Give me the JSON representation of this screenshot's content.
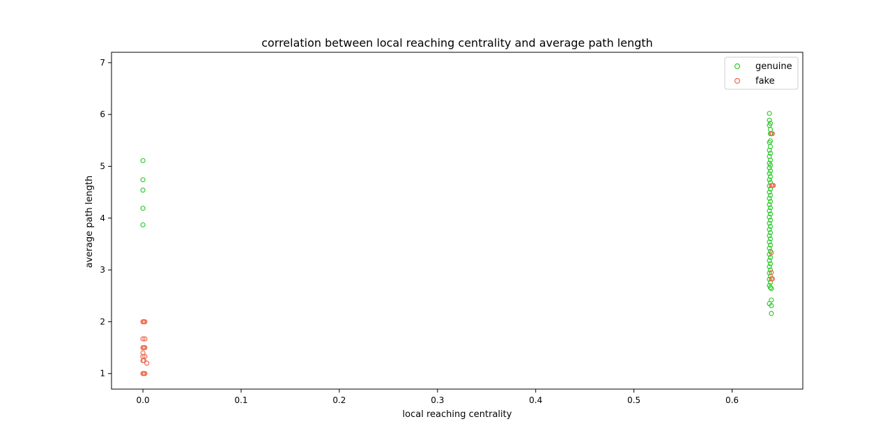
{
  "chart_data": {
    "type": "scatter",
    "title": "correlation between local reaching centrality and average path length",
    "xlabel": "local reaching centrality",
    "ylabel": "average path length",
    "xlim": [
      -0.032,
      0.672
    ],
    "ylim": [
      0.7,
      7.2
    ],
    "xticks": [
      0.0,
      0.1,
      0.2,
      0.3,
      0.4,
      0.5,
      0.6
    ],
    "xtick_labels": [
      "0.0",
      "0.1",
      "0.2",
      "0.3",
      "0.4",
      "0.5",
      "0.6"
    ],
    "yticks": [
      1,
      2,
      3,
      4,
      5,
      6,
      7
    ],
    "ytick_labels": [
      "1",
      "2",
      "3",
      "4",
      "5",
      "6",
      "7"
    ],
    "grid": false,
    "legend_position": "top-right",
    "marker": "open-circle",
    "series": [
      {
        "name": "genuine",
        "color": "#33cc33",
        "points": [
          [
            0.0,
            5.11
          ],
          [
            0.0,
            4.74
          ],
          [
            0.0,
            4.54
          ],
          [
            0.0,
            4.19
          ],
          [
            0.0,
            3.87
          ],
          [
            0.638,
            6.02
          ],
          [
            0.638,
            5.89
          ],
          [
            0.639,
            5.83
          ],
          [
            0.638,
            5.79
          ],
          [
            0.639,
            5.71
          ],
          [
            0.639,
            5.63
          ],
          [
            0.639,
            5.49
          ],
          [
            0.638,
            5.46
          ],
          [
            0.639,
            5.38
          ],
          [
            0.638,
            5.31
          ],
          [
            0.639,
            5.25
          ],
          [
            0.638,
            5.19
          ],
          [
            0.639,
            5.12
          ],
          [
            0.638,
            5.06
          ],
          [
            0.639,
            5.02
          ],
          [
            0.638,
            4.97
          ],
          [
            0.639,
            4.91
          ],
          [
            0.638,
            4.86
          ],
          [
            0.639,
            4.8
          ],
          [
            0.638,
            4.74
          ],
          [
            0.639,
            4.69
          ],
          [
            0.638,
            4.62
          ],
          [
            0.639,
            4.56
          ],
          [
            0.638,
            4.5
          ],
          [
            0.639,
            4.44
          ],
          [
            0.638,
            4.38
          ],
          [
            0.639,
            4.32
          ],
          [
            0.638,
            4.26
          ],
          [
            0.639,
            4.2
          ],
          [
            0.638,
            4.14
          ],
          [
            0.639,
            4.08
          ],
          [
            0.638,
            4.02
          ],
          [
            0.639,
            3.96
          ],
          [
            0.638,
            3.9
          ],
          [
            0.639,
            3.84
          ],
          [
            0.638,
            3.78
          ],
          [
            0.639,
            3.72
          ],
          [
            0.638,
            3.66
          ],
          [
            0.639,
            3.6
          ],
          [
            0.638,
            3.54
          ],
          [
            0.639,
            3.48
          ],
          [
            0.638,
            3.42
          ],
          [
            0.639,
            3.36
          ],
          [
            0.638,
            3.3
          ],
          [
            0.639,
            3.24
          ],
          [
            0.638,
            3.18
          ],
          [
            0.639,
            3.12
          ],
          [
            0.638,
            3.06
          ],
          [
            0.639,
            3.0
          ],
          [
            0.638,
            2.94
          ],
          [
            0.639,
            2.88
          ],
          [
            0.638,
            2.82
          ],
          [
            0.639,
            2.76
          ],
          [
            0.638,
            2.7
          ],
          [
            0.639,
            2.66
          ],
          [
            0.64,
            2.64
          ],
          [
            0.64,
            2.42
          ],
          [
            0.638,
            2.35
          ],
          [
            0.64,
            2.31
          ],
          [
            0.64,
            2.16
          ]
        ]
      },
      {
        "name": "fake",
        "color": "#ee6a50",
        "points": [
          [
            0.0,
            2.0
          ],
          [
            0.001,
            2.0
          ],
          [
            0.002,
            2.0
          ],
          [
            0.0,
            1.67
          ],
          [
            0.002,
            1.67
          ],
          [
            0.0,
            1.5
          ],
          [
            0.001,
            1.5
          ],
          [
            0.002,
            1.5
          ],
          [
            0.0,
            1.4
          ],
          [
            0.0,
            1.33
          ],
          [
            0.002,
            1.33
          ],
          [
            0.0,
            1.25
          ],
          [
            0.001,
            1.25
          ],
          [
            0.004,
            1.2
          ],
          [
            0.0,
            1.0
          ],
          [
            0.001,
            1.0
          ],
          [
            0.002,
            1.0
          ],
          [
            0.64,
            5.63
          ],
          [
            0.641,
            5.63
          ],
          [
            0.64,
            4.63
          ],
          [
            0.641,
            4.63
          ],
          [
            0.642,
            4.63
          ],
          [
            0.64,
            3.33
          ],
          [
            0.64,
            2.95
          ],
          [
            0.64,
            2.83
          ],
          [
            0.641,
            2.83
          ]
        ]
      }
    ]
  }
}
